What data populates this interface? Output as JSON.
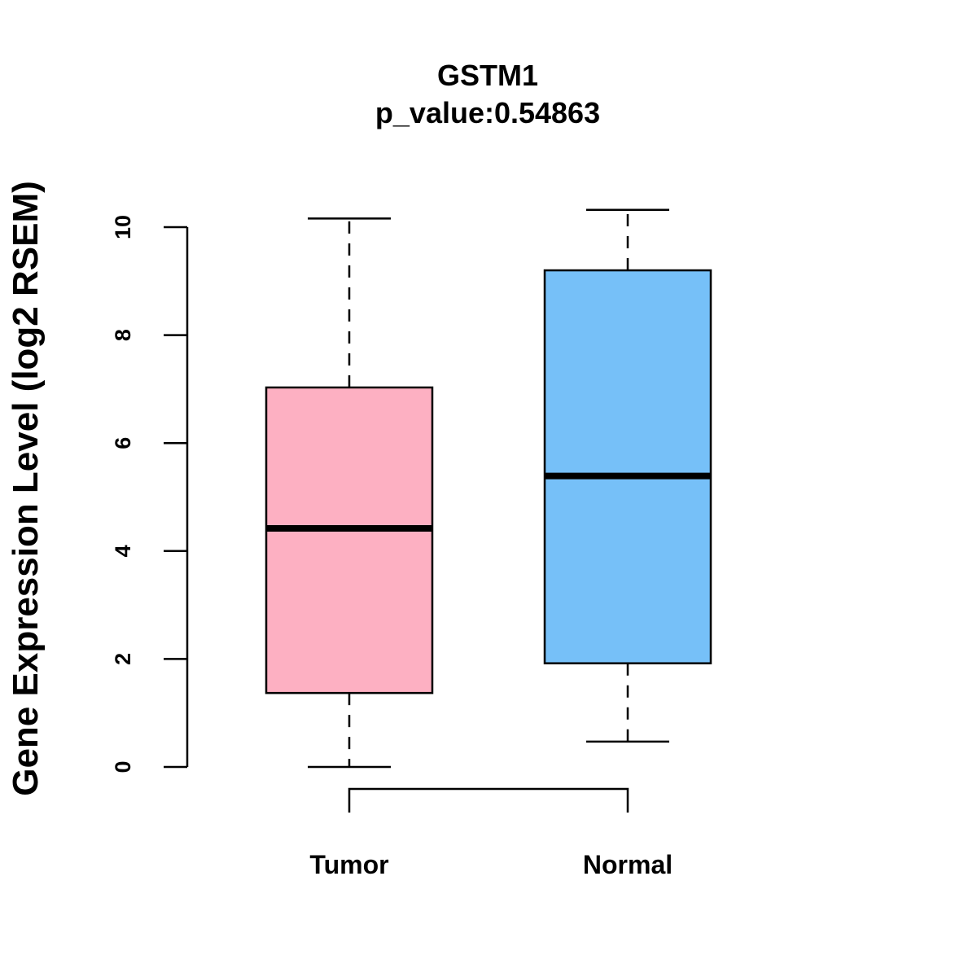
{
  "chart_data": {
    "type": "boxplot",
    "title": "GSTM1",
    "subtitle": "p_value:0.54863",
    "xlabel": "",
    "ylabel": "Gene Expression Level (log2 RSEM)",
    "ylim": [
      0,
      10
    ],
    "yticks": [
      0,
      2,
      4,
      6,
      8,
      10
    ],
    "grid": false,
    "categories": [
      "Tumor",
      "Normal"
    ],
    "boxes": [
      {
        "name": "Tumor",
        "min": 0.0,
        "q1": 1.37,
        "median": 4.42,
        "q3": 7.03,
        "max": 10.16,
        "color": "#FDB0C2"
      },
      {
        "name": "Normal",
        "min": 0.47,
        "q1": 1.92,
        "median": 5.39,
        "q3": 9.2,
        "max": 10.32,
        "color": "#76C0F8"
      }
    ],
    "comparison_bracket": {
      "from": "Tumor",
      "to": "Normal"
    }
  }
}
